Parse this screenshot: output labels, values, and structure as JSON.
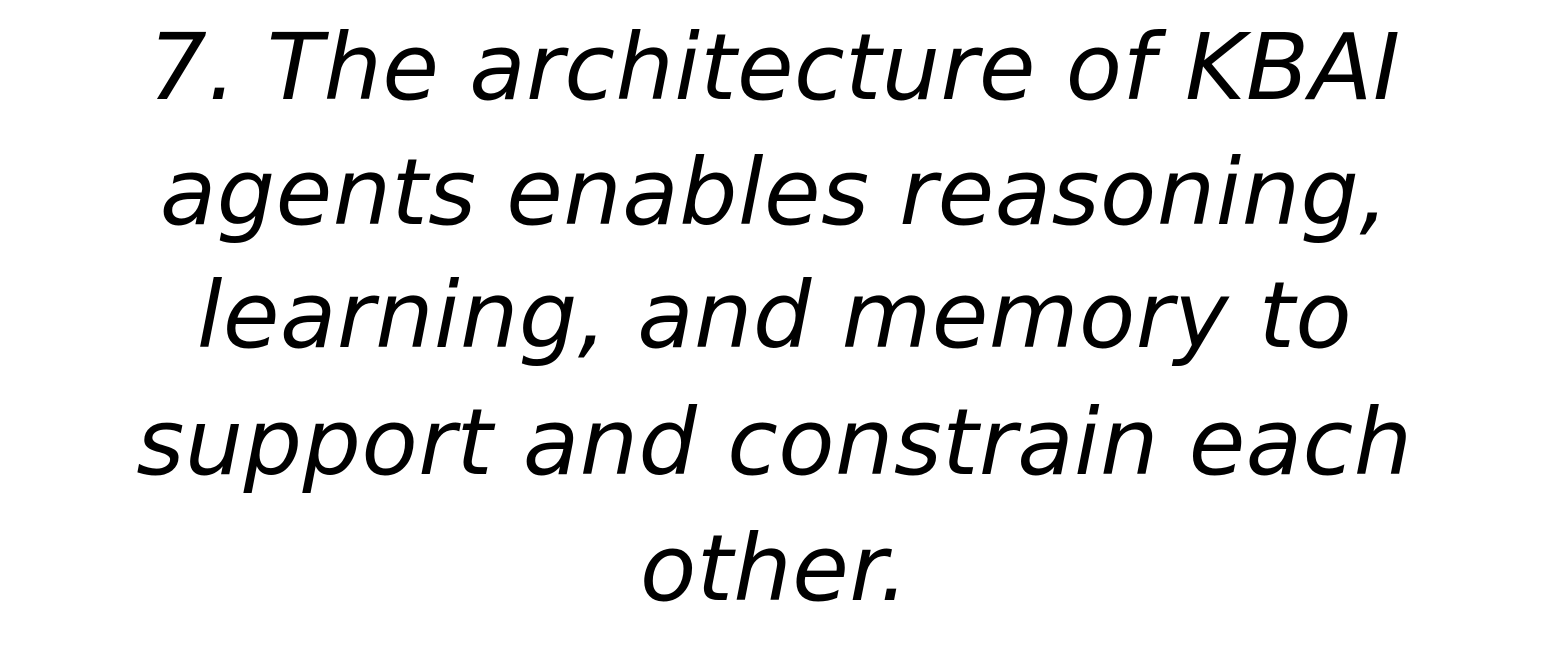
{
  "statement": {
    "lines": [
      "7. The architecture of KBAI",
      "agents enables reasoning,",
      "learning, and memory to",
      "support and constrain each",
      "other."
    ]
  },
  "colors": {
    "background": "#ffffff",
    "text": "#000000"
  }
}
